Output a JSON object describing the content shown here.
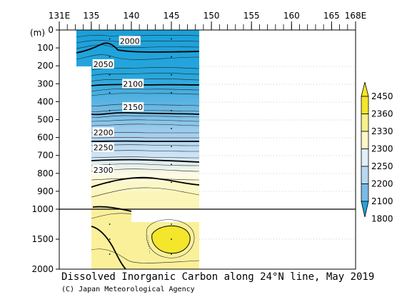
{
  "chart_data": {
    "type": "contour-section",
    "title": "Dissolved Inorganic Carbon along 24°N line, May 2019",
    "credit": "(C) Japan Meteorological Agency",
    "y_unit": "(m)",
    "x_ticks": [
      {
        "value": 131,
        "label": "131E"
      },
      {
        "value": 135,
        "label": "135"
      },
      {
        "value": 140,
        "label": "140"
      },
      {
        "value": 145,
        "label": "145"
      },
      {
        "value": 150,
        "label": "150"
      },
      {
        "value": 155,
        "label": "155"
      },
      {
        "value": 160,
        "label": "160"
      },
      {
        "value": 165,
        "label": "165"
      },
      {
        "value": 168,
        "label": "168E"
      }
    ],
    "y_ticks_upper": [
      0,
      100,
      200,
      300,
      400,
      500,
      600,
      700,
      800,
      900,
      1000
    ],
    "y_ticks_lower": [
      1500,
      2000
    ],
    "xlim": [
      131,
      168
    ],
    "ylim_upper": [
      0,
      1000
    ],
    "ylim_lower": [
      1000,
      2000
    ],
    "contour_levels": [
      {
        "value": "2000",
        "lon": 139.8,
        "depth": 65
      },
      {
        "value": "2050",
        "lon": 136.5,
        "depth": 195
      },
      {
        "value": "2100",
        "lon": 140.2,
        "depth": 305
      },
      {
        "value": "2150",
        "lon": 140.2,
        "depth": 435
      },
      {
        "value": "2200",
        "lon": 136.5,
        "depth": 575
      },
      {
        "value": "2250",
        "lon": 136.5,
        "depth": 660
      },
      {
        "value": "2300",
        "lon": 136.5,
        "depth": 785
      }
    ],
    "colorbar": {
      "levels": [
        "2450",
        "2360",
        "2330",
        "2300",
        "2250",
        "2200",
        "2100",
        "1800"
      ],
      "colors": [
        "#f4e62a",
        "#f8f08c",
        "#fcf8c8",
        "#e2effa",
        "#b8d8f0",
        "#78bce6",
        "#22a4dc"
      ]
    }
  }
}
